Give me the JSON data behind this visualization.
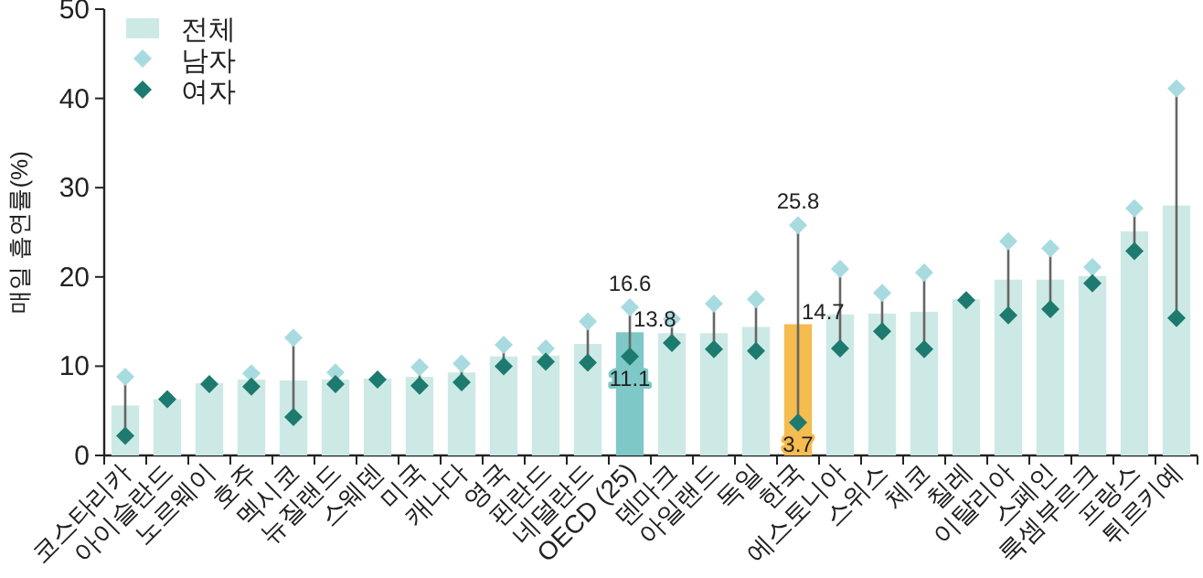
{
  "chart_data": {
    "type": "bar",
    "ylabel": "매일 흡연률(%)",
    "ylim": [
      0,
      50
    ],
    "yticks": [
      0,
      10,
      20,
      30,
      40,
      50
    ],
    "legend": "top left",
    "marker": "diamond",
    "grid": false,
    "categories": [
      "코스타리카",
      "아이슬란드",
      "노르웨이",
      "호주",
      "멕시코",
      "뉴질랜드",
      "스웨덴",
      "미국",
      "캐나다",
      "영국",
      "핀란드",
      "네덜란드",
      "OECD (25)",
      "덴마크",
      "아일랜드",
      "독일",
      "한국",
      "에스토니아",
      "스위스",
      "체코",
      "칠레",
      "이탈리아",
      "스페인",
      "룩셈부르크",
      "프랑스",
      "튀르키예"
    ],
    "series": [
      {
        "name": "전체",
        "type": "bar",
        "color": "#cde9e6",
        "colors": [
          "#cde9e6",
          "#cde9e6",
          "#cde9e6",
          "#cde9e6",
          "#cde9e6",
          "#cde9e6",
          "#cde9e6",
          "#cde9e6",
          "#cde9e6",
          "#cde9e6",
          "#cde9e6",
          "#cde9e6",
          "#7ec8c8",
          "#cde9e6",
          "#cde9e6",
          "#cde9e6",
          "#f5bc50",
          "#cde9e6",
          "#cde9e6",
          "#cde9e6",
          "#cde9e6",
          "#cde9e6",
          "#cde9e6",
          "#cde9e6",
          "#cde9e6",
          "#cde9e6"
        ],
        "values": [
          5.6,
          6.3,
          8.1,
          8.5,
          8.4,
          8.5,
          8.6,
          8.8,
          9.3,
          11.1,
          11.2,
          12.5,
          13.8,
          13.7,
          13.7,
          14.4,
          14.7,
          15.8,
          15.9,
          16.1,
          17.5,
          19.7,
          19.7,
          20.1,
          25.1,
          28.0
        ],
        "value_labels": [
          null,
          null,
          null,
          null,
          null,
          null,
          null,
          null,
          null,
          null,
          null,
          null,
          "13.8",
          null,
          null,
          null,
          "14.7",
          null,
          null,
          null,
          null,
          null,
          null,
          null,
          null,
          null
        ]
      },
      {
        "name": "남자",
        "type": "scatter",
        "color": "#a8dbe0",
        "values": [
          8.8,
          null,
          null,
          9.2,
          13.2,
          9.3,
          null,
          9.9,
          10.3,
          12.4,
          12.0,
          15.0,
          16.6,
          15.3,
          17.0,
          17.5,
          25.8,
          20.9,
          18.2,
          20.5,
          null,
          24.0,
          23.2,
          21.1,
          27.7,
          41.1
        ],
        "value_labels": [
          null,
          null,
          null,
          null,
          null,
          null,
          null,
          null,
          null,
          null,
          null,
          null,
          "16.6",
          null,
          null,
          null,
          "25.8",
          null,
          null,
          null,
          null,
          null,
          null,
          null,
          null,
          null
        ]
      },
      {
        "name": "여자",
        "type": "scatter",
        "color": "#1d7a6e",
        "values": [
          2.2,
          6.3,
          8.0,
          7.7,
          4.3,
          8.0,
          8.5,
          7.8,
          8.2,
          10.0,
          10.5,
          10.4,
          11.1,
          12.6,
          11.9,
          11.7,
          3.7,
          12.0,
          13.9,
          11.9,
          17.4,
          15.7,
          16.4,
          19.3,
          22.9,
          15.4
        ],
        "value_labels": [
          null,
          null,
          null,
          null,
          null,
          null,
          null,
          null,
          null,
          null,
          null,
          null,
          "11.1",
          null,
          null,
          null,
          "3.7",
          null,
          null,
          null,
          null,
          null,
          null,
          null,
          null,
          null
        ]
      }
    ]
  }
}
